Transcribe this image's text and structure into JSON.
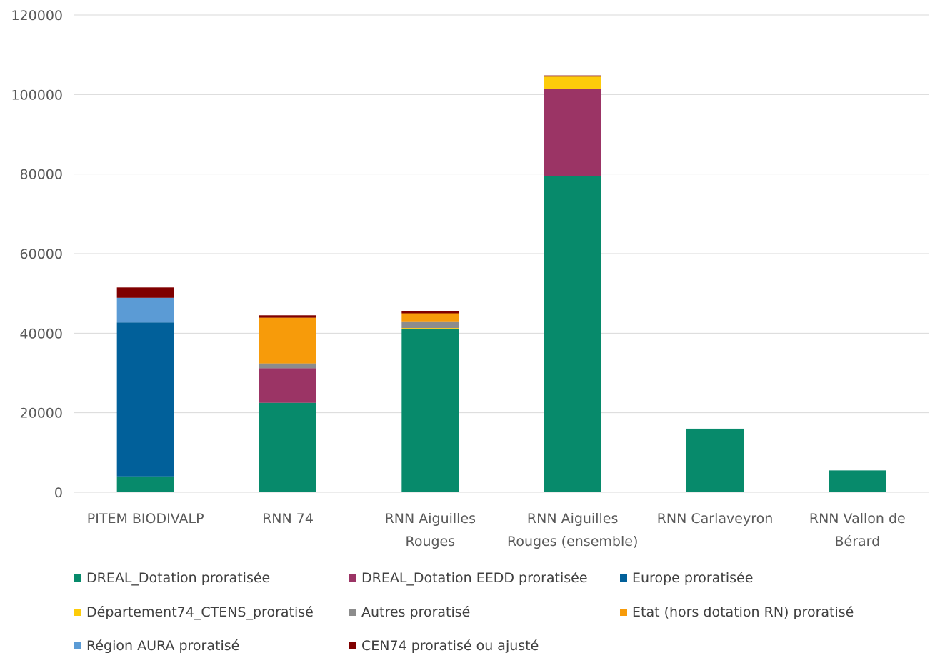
{
  "chart_data": {
    "type": "bar",
    "stacked": true,
    "title": "",
    "xlabel": "",
    "ylabel": "",
    "ylim": [
      0,
      120000
    ],
    "yticks": [
      "0",
      "20000",
      "40000",
      "60000",
      "80000",
      "100000",
      "120000"
    ],
    "ytick_values": [
      0,
      20000,
      40000,
      60000,
      80000,
      100000,
      120000
    ],
    "grid": true,
    "legend_position": "bottom",
    "categories": [
      [
        "PITEM BIODIVALP"
      ],
      [
        "RNN 74"
      ],
      [
        "RNN Aiguilles",
        "Rouges"
      ],
      [
        "RNN Aiguilles",
        "Rouges (ensemble)"
      ],
      [
        "RNN Carlaveyron"
      ],
      [
        "RNN Vallon de",
        "Bérard"
      ]
    ],
    "series": [
      {
        "name": "DREAL_Dotation proratisée",
        "color": "#078A6B",
        "values": [
          4000,
          22500,
          41000,
          79500,
          16000,
          5500
        ]
      },
      {
        "name": "DREAL_Dotation EEDD proratisée",
        "color": "#9B3465",
        "values": [
          0,
          8700,
          0,
          22000,
          0,
          0
        ]
      },
      {
        "name": "Europe proratisée",
        "color": "#01609A",
        "values": [
          38700,
          0,
          0,
          0,
          0,
          0
        ]
      },
      {
        "name": "Département74_CTENS_proratisé",
        "color": "#FDCC0A",
        "values": [
          0,
          0,
          300,
          3000,
          0,
          0
        ]
      },
      {
        "name": "Autres proratisé",
        "color": "#8C8C8C",
        "values": [
          0,
          1200,
          1500,
          0,
          0,
          0
        ]
      },
      {
        "name": "Etat (hors dotation RN) proratisé",
        "color": "#F79B0A",
        "values": [
          0,
          11500,
          2200,
          0,
          0,
          0
        ]
      },
      {
        "name": "Région AURA proratisé",
        "color": "#5B9BD5",
        "values": [
          6200,
          0,
          0,
          0,
          0,
          0
        ]
      },
      {
        "name": "CEN74 proratisé ou ajusté",
        "color": "#7F0000",
        "values": [
          2600,
          600,
          600,
          300,
          0,
          0
        ]
      }
    ]
  }
}
